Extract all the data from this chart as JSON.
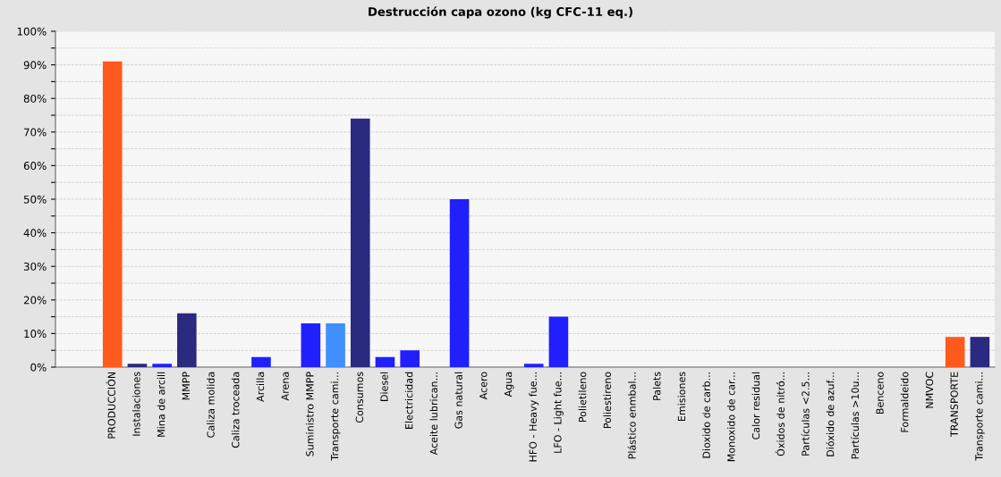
{
  "chart_data": {
    "type": "bar",
    "title": "Destrucción capa ozono (kg CFC-11 eq.)",
    "categories": [
      "PRODUCCIÓN",
      "Instalaciones",
      "Mina de arcill",
      "MMPP",
      "Caliza molida",
      "Caliza troceada",
      "Arcilla",
      "Arena",
      "Suministro MMPP",
      "Transporte cami...",
      "Consumos",
      "Diesel",
      "Electricidad",
      "Aceite lubrican...",
      "Gas natural",
      "Acero",
      "Agua",
      "HFO - Heavy fue...",
      "LFO - Light fue...",
      "Polietileno",
      "Poliestireno",
      "Plástico enmbal...",
      "Palets",
      "Emisiones",
      "Dioxido de carb...",
      "Monoxido de car...",
      "Calor residual",
      "Óxidos de nitró...",
      "Partículas <2.5...",
      "Dióxido de azuf...",
      "Partículas >10u...",
      "Benceno",
      "Formaldeido",
      "NMVOC",
      "TRANSPORTE",
      "Transporte cami..."
    ],
    "values": [
      91,
      1,
      1,
      16,
      0,
      0,
      3,
      0,
      13,
      13,
      74,
      3,
      5,
      0,
      50,
      0,
      0,
      1,
      15,
      0,
      0,
      0,
      0,
      0,
      0,
      0,
      0,
      0,
      0,
      0,
      0,
      0,
      0,
      0,
      9,
      9
    ],
    "colors": [
      "#ff5a1e",
      "#2a2a80",
      "#2020ff",
      "#2a2a80",
      "#2020ff",
      "#2020ff",
      "#2020ff",
      "#2020ff",
      "#2020ff",
      "#3f8fff",
      "#2a2a80",
      "#2020ff",
      "#2020ff",
      "#2020ff",
      "#2020ff",
      "#2020ff",
      "#2020ff",
      "#2020ff",
      "#2020ff",
      "#2020ff",
      "#2020ff",
      "#2020ff",
      "#2020ff",
      "#2020ff",
      "#2020ff",
      "#2020ff",
      "#2020ff",
      "#2020ff",
      "#2020ff",
      "#2020ff",
      "#2020ff",
      "#2020ff",
      "#2020ff",
      "#2020ff",
      "#ff5a1e",
      "#2a2a80"
    ],
    "ylim": [
      0,
      100
    ],
    "yticks": [
      {
        "value": 0,
        "label": "0%"
      },
      {
        "value": 5,
        "label": null
      },
      {
        "value": 10,
        "label": "10%"
      },
      {
        "value": 15,
        "label": null
      },
      {
        "value": 20,
        "label": "20%"
      },
      {
        "value": 25,
        "label": null
      },
      {
        "value": 30,
        "label": "30%"
      },
      {
        "value": 35,
        "label": null
      },
      {
        "value": 40,
        "label": "40%"
      },
      {
        "value": 45,
        "label": null
      },
      {
        "value": 50,
        "label": "50%"
      },
      {
        "value": 55,
        "label": null
      },
      {
        "value": 60,
        "label": "60%"
      },
      {
        "value": 65,
        "label": null
      },
      {
        "value": 70,
        "label": "70%"
      },
      {
        "value": 75,
        "label": null
      },
      {
        "value": 80,
        "label": "80%"
      },
      {
        "value": 85,
        "label": null
      },
      {
        "value": 90,
        "label": "90%"
      },
      {
        "value": 95,
        "label": null
      },
      {
        "value": 100,
        "label": "100%"
      }
    ],
    "grid": "y"
  }
}
